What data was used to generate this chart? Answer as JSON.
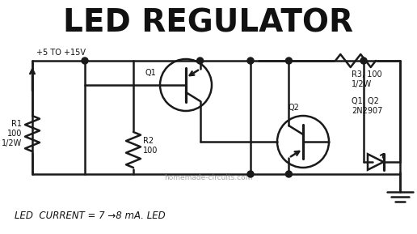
{
  "title": "LED REGULATOR",
  "bg_color": "#ffffff",
  "line_color": "#1a1a1a",
  "text_color": "#111111",
  "watermark": "homemade-circuits.com",
  "bottom_text": "LED  CURRENT = 7 →8 mA. LED",
  "voltage_label": "+5 TO +15V",
  "r1_label": "R1\n100\n1/2W",
  "r2_label": "R2\n100",
  "r3_label": "R3, 100\n1/2W",
  "q1_label": "Q1",
  "q2_label": "Q2",
  "q1q2_label": "Q1, Q2\n2N2907",
  "figw": 5.16,
  "figh": 2.89,
  "dpi": 100,
  "xlim": [
    0,
    516
  ],
  "ylim": [
    0,
    289
  ]
}
